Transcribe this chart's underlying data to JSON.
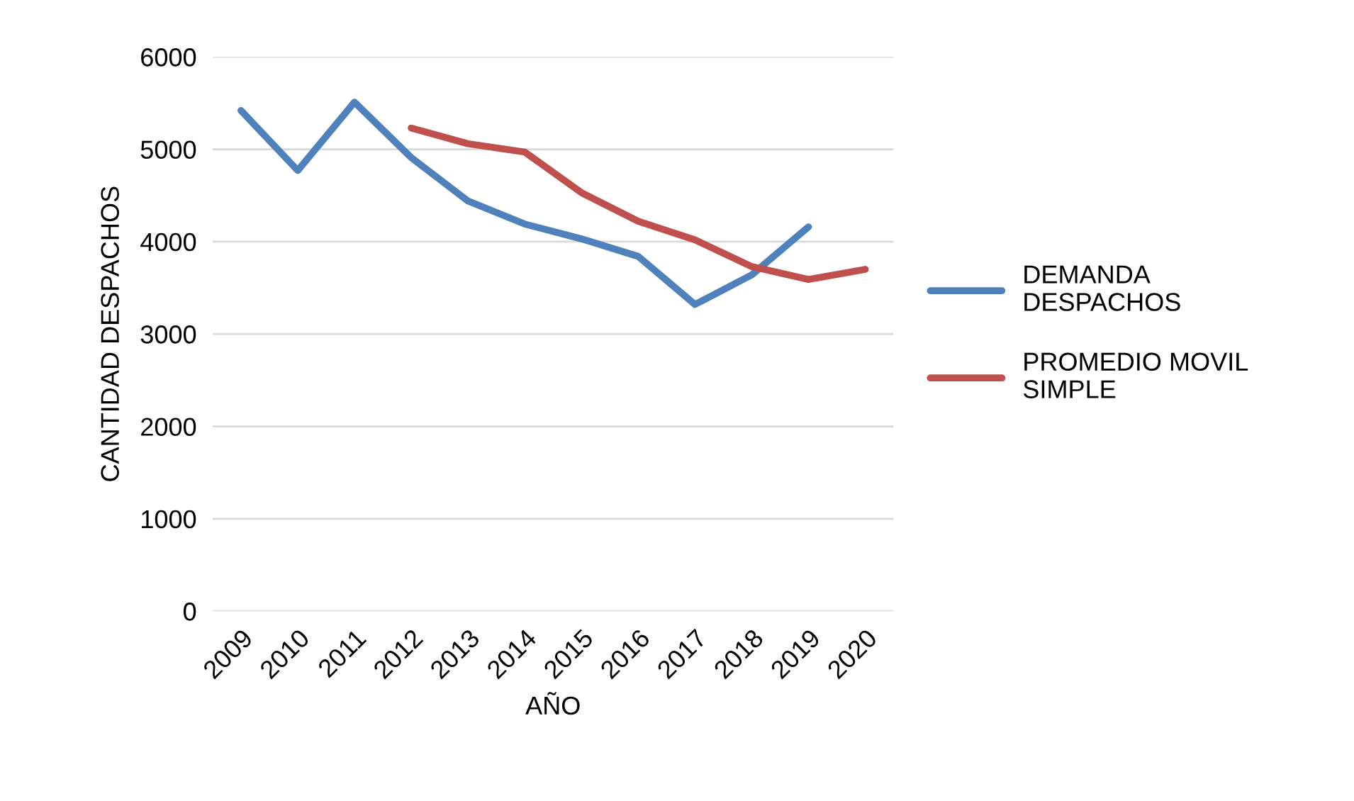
{
  "chart_data": {
    "type": "line",
    "xlabel": "AÑO",
    "ylabel": "CANTIDAD DESPACHOS",
    "categories": [
      "2009",
      "2010",
      "2011",
      "2012",
      "2013",
      "2014",
      "2015",
      "2016",
      "2017",
      "2018",
      "2019",
      "2020"
    ],
    "series": [
      {
        "name": "DEMANDA DESPACHOS",
        "color": "#4f81bd",
        "values": [
          5420,
          4770,
          5510,
          4910,
          4440,
          4190,
          4030,
          3840,
          3320,
          3640,
          4160,
          null
        ]
      },
      {
        "name": "PROMEDIO MOVIL SIMPLE",
        "color": "#c0504d",
        "values": [
          null,
          null,
          null,
          5230,
          5060,
          4970,
          4530,
          4220,
          4020,
          3730,
          3590,
          3700
        ]
      }
    ],
    "ylim": [
      0,
      6000
    ],
    "yticks": [
      0,
      1000,
      2000,
      3000,
      4000,
      5000,
      6000
    ],
    "grid": "y",
    "legend": "right",
    "marker": "none",
    "line_style": "solid"
  }
}
